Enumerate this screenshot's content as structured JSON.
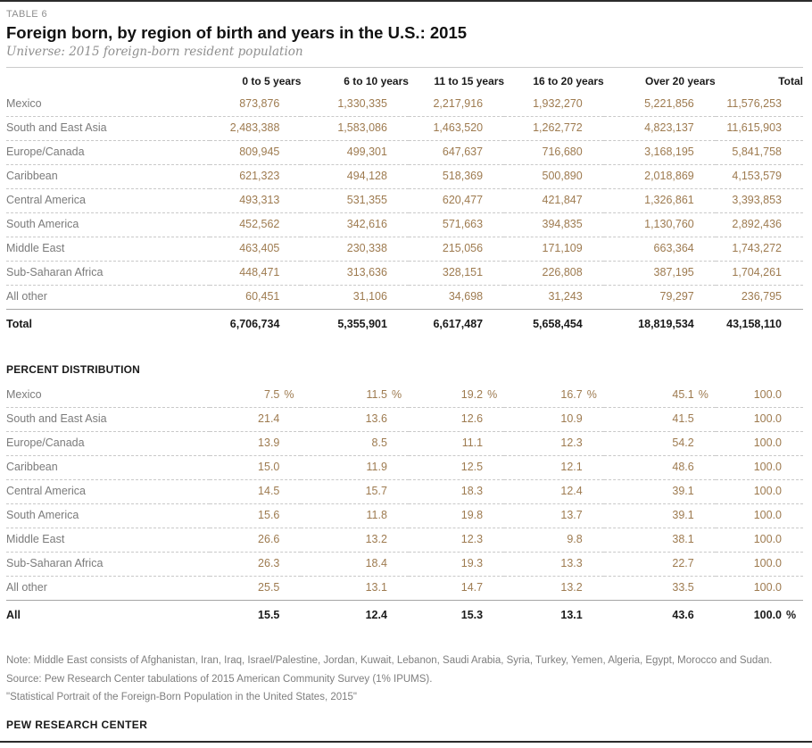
{
  "header": {
    "tag": "TABLE 6",
    "title": "Foreign born, by region of birth and years in the U.S.: 2015",
    "subtitle": "Universe: 2015 foreign-born resident population"
  },
  "chart_data": {
    "type": "table",
    "title": "Foreign born, by region of birth and years in the U.S.: 2015",
    "subtitle": "Universe: 2015 foreign-born resident population",
    "columns": [
      "0 to 5 years",
      "6 to 10 years",
      "11 to 15 years",
      "16 to 20 years",
      "Over 20 years",
      "Total"
    ],
    "counts": {
      "rows": [
        {
          "label": "Mexico",
          "values": [
            "873,876",
            "1,330,335",
            "2,217,916",
            "1,932,270",
            "5,221,856",
            "11,576,253"
          ]
        },
        {
          "label": "South and East Asia",
          "values": [
            "2,483,388",
            "1,583,086",
            "1,463,520",
            "1,262,772",
            "4,823,137",
            "11,615,903"
          ]
        },
        {
          "label": "Europe/Canada",
          "values": [
            "809,945",
            "499,301",
            "647,637",
            "716,680",
            "3,168,195",
            "5,841,758"
          ]
        },
        {
          "label": "Caribbean",
          "values": [
            "621,323",
            "494,128",
            "518,369",
            "500,890",
            "2,018,869",
            "4,153,579"
          ]
        },
        {
          "label": "Central America",
          "values": [
            "493,313",
            "531,355",
            "620,477",
            "421,847",
            "1,326,861",
            "3,393,853"
          ]
        },
        {
          "label": "South America",
          "values": [
            "452,562",
            "342,616",
            "571,663",
            "394,835",
            "1,130,760",
            "2,892,436"
          ]
        },
        {
          "label": "Middle East",
          "values": [
            "463,405",
            "230,338",
            "215,056",
            "171,109",
            "663,364",
            "1,743,272"
          ]
        },
        {
          "label": "Sub-Saharan Africa",
          "values": [
            "448,471",
            "313,636",
            "328,151",
            "226,808",
            "387,195",
            "1,704,261"
          ]
        },
        {
          "label": "All other",
          "values": [
            "60,451",
            "31,106",
            "34,698",
            "31,243",
            "79,297",
            "236,795"
          ]
        }
      ],
      "total": {
        "label": "Total",
        "values": [
          "6,706,734",
          "5,355,901",
          "6,617,487",
          "5,658,454",
          "18,819,534",
          "43,158,110"
        ]
      }
    },
    "percent": {
      "section_label": "PERCENT DISTRIBUTION",
      "rows": [
        {
          "label": "Mexico",
          "values": [
            "7.5",
            "11.5",
            "19.2",
            "16.7",
            "45.1",
            "100.0"
          ],
          "units": [
            "%",
            "%",
            "%",
            "%",
            "%",
            ""
          ]
        },
        {
          "label": "South and East Asia",
          "values": [
            "21.4",
            "13.6",
            "12.6",
            "10.9",
            "41.5",
            "100.0"
          ]
        },
        {
          "label": "Europe/Canada",
          "values": [
            "13.9",
            "8.5",
            "11.1",
            "12.3",
            "54.2",
            "100.0"
          ]
        },
        {
          "label": "Caribbean",
          "values": [
            "15.0",
            "11.9",
            "12.5",
            "12.1",
            "48.6",
            "100.0"
          ]
        },
        {
          "label": "Central America",
          "values": [
            "14.5",
            "15.7",
            "18.3",
            "12.4",
            "39.1",
            "100.0"
          ]
        },
        {
          "label": "South America",
          "values": [
            "15.6",
            "11.8",
            "19.8",
            "13.7",
            "39.1",
            "100.0"
          ]
        },
        {
          "label": "Middle East",
          "values": [
            "26.6",
            "13.2",
            "12.3",
            "9.8",
            "38.1",
            "100.0"
          ]
        },
        {
          "label": "Sub-Saharan Africa",
          "values": [
            "26.3",
            "18.4",
            "19.3",
            "13.3",
            "22.7",
            "100.0"
          ]
        },
        {
          "label": "All other",
          "values": [
            "25.5",
            "13.1",
            "14.7",
            "13.2",
            "33.5",
            "100.0"
          ]
        }
      ],
      "total": {
        "label": "All",
        "values": [
          "15.5",
          "12.4",
          "15.3",
          "13.1",
          "43.6",
          "100.0"
        ],
        "units": [
          "",
          "",
          "",
          "",
          "",
          "%"
        ]
      }
    }
  },
  "notes": {
    "note": "Note: Middle East consists of Afghanistan, Iran, Iraq, Israel/Palestine, Jordan, Kuwait, Lebanon, Saudi Arabia, Syria, Turkey, Yemen, Algeria, Egypt, Morocco and Sudan.",
    "source": "Source: Pew Research Center tabulations of 2015 American Community Survey (1% IPUMS).",
    "citation": "\"Statistical Portrait of the Foreign-Born Population in the United States, 2015\""
  },
  "footer": {
    "brand": "PEW RESEARCH CENTER"
  },
  "colors": {
    "value_text": "#9e7b50",
    "label_text": "#7b7b7b",
    "heading_text": "#1a1a1a",
    "rule_dark": "#2b2b2b",
    "rule_light": "#cbcbcb",
    "muted_text": "#8f8f8f"
  }
}
